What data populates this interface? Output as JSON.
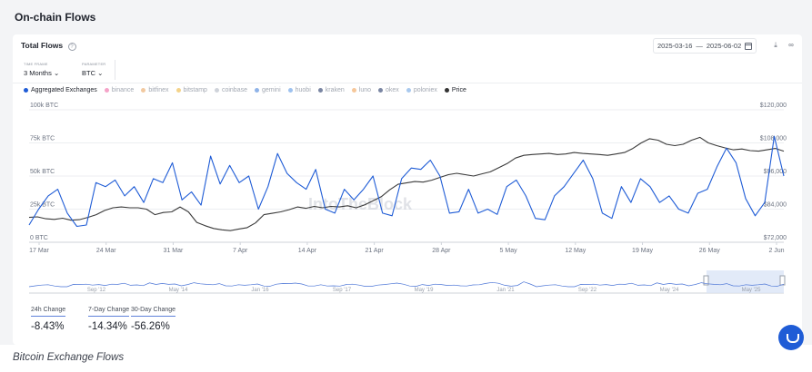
{
  "page": {
    "title": "On-chain Flows",
    "caption": "Bitcoin Exchange Flows"
  },
  "card": {
    "title": "Total Flows",
    "date_start": "2025-03-16",
    "date_sep": "—",
    "date_end": "2025-06-02",
    "download_icon": "download-icon",
    "link_icon": "link-icon",
    "info_icon": "info-icon",
    "calendar_icon": "calendar-icon"
  },
  "controls": {
    "timeframe_label": "TIME FRAME",
    "timeframe_value": "3 Months",
    "parameter_label": "PARAMETER",
    "parameter_value": "BTC"
  },
  "legend": [
    {
      "label": "Aggregated Exchanges",
      "color": "#1f5cd6",
      "active": true
    },
    {
      "label": "binance",
      "color": "#f5a3c8",
      "active": false
    },
    {
      "label": "bitfinex",
      "color": "#f2c9a0",
      "active": false
    },
    {
      "label": "bitstamp",
      "color": "#f4d38a",
      "active": false
    },
    {
      "label": "coinbase",
      "color": "#cfd3da",
      "active": false
    },
    {
      "label": "gemini",
      "color": "#8fb3e8",
      "active": false
    },
    {
      "label": "huobi",
      "color": "#9ec2ef",
      "active": false
    },
    {
      "label": "kraken",
      "color": "#7a86a3",
      "active": false
    },
    {
      "label": "luno",
      "color": "#f6c79a",
      "active": false
    },
    {
      "label": "okex",
      "color": "#7a86a3",
      "active": false
    },
    {
      "label": "poloniex",
      "color": "#a9c9ee",
      "active": false
    },
    {
      "label": "Price",
      "color": "#333333",
      "active": true
    }
  ],
  "watermark": "IntoTheBlock",
  "chart_data": {
    "type": "line",
    "x_ticks": [
      "17 Mar",
      "24 Mar",
      "31 Mar",
      "7 Apr",
      "14 Apr",
      "21 Apr",
      "28 Apr",
      "5 May",
      "12 May",
      "19 May",
      "26 May",
      "2 Jun"
    ],
    "y_left_ticks": [
      "100k BTC",
      "75k BTC",
      "50k BTC",
      "25k BTC",
      "0 BTC"
    ],
    "y_right_ticks": [
      "$120,000",
      "$108,000",
      "$96,000",
      "$84,000",
      "$72,000"
    ],
    "y_left_range": [
      0,
      100000
    ],
    "y_right_range": [
      72000,
      120000
    ],
    "x_range": [
      "2025-03-17",
      "2025-06-02"
    ],
    "grid": true,
    "legend_position": "top-left",
    "series": [
      {
        "name": "Aggregated Exchanges",
        "color": "#1f5cd6",
        "axis": "left",
        "values": [
          13000,
          25000,
          35000,
          40000,
          22000,
          12000,
          13000,
          45000,
          42000,
          47000,
          35000,
          42000,
          30000,
          48000,
          45000,
          60000,
          32000,
          38000,
          28000,
          65000,
          44000,
          58000,
          45000,
          50000,
          25000,
          42000,
          67000,
          52000,
          45000,
          40000,
          55000,
          25000,
          22000,
          40000,
          32000,
          40000,
          50000,
          22000,
          20000,
          48000,
          56000,
          55000,
          62000,
          50000,
          22000,
          23000,
          40000,
          22000,
          25000,
          21000,
          42000,
          47000,
          35000,
          18000,
          17000,
          35000,
          42000,
          52000,
          62000,
          48000,
          22000,
          18000,
          42000,
          30000,
          48000,
          42000,
          30000,
          35000,
          25000,
          22000,
          37000,
          40000,
          57000,
          71000,
          60000,
          33000,
          20000,
          30000,
          80000,
          50000
        ]
      },
      {
        "name": "Price",
        "color": "#3a3a3a",
        "axis": "right",
        "values": [
          81000,
          81200,
          80500,
          80300,
          80700,
          80000,
          80200,
          81000,
          82000,
          83500,
          84500,
          84800,
          84500,
          84500,
          84000,
          82000,
          82800,
          83000,
          84800,
          83000,
          79200,
          78000,
          77000,
          76500,
          76200,
          76800,
          77300,
          79000,
          82000,
          82500,
          83000,
          83800,
          84800,
          84300,
          85000,
          84500,
          85000,
          84800,
          85200,
          84500,
          85500,
          87000,
          88500,
          91000,
          93000,
          93500,
          94000,
          93800,
          94500,
          95500,
          96500,
          97000,
          96500,
          96000,
          96800,
          97500,
          99000,
          100500,
          102500,
          103500,
          103800,
          104000,
          104200,
          103800,
          104000,
          104500,
          104200,
          104000,
          103800,
          103500,
          104000,
          104500,
          106000,
          108000,
          109500,
          109000,
          107500,
          107000,
          107500,
          109000,
          110000,
          108000,
          107000,
          106200,
          105500,
          105800,
          105200,
          105000,
          105500,
          106000,
          105000
        ]
      }
    ]
  },
  "navigator": {
    "labels": [
      "Sep '12",
      "May '14",
      "Jan '16",
      "Sep '17",
      "May '19",
      "Jan '21",
      "Sep '22",
      "May '24",
      "May '25"
    ]
  },
  "changes": [
    {
      "label": "24h Change",
      "value": "-8.43%"
    },
    {
      "label": "7-Day Change",
      "value": "-14.34%"
    },
    {
      "label": "30-Day Change",
      "value": "-56.26%"
    }
  ],
  "chat": {
    "icon": "chat-icon"
  }
}
